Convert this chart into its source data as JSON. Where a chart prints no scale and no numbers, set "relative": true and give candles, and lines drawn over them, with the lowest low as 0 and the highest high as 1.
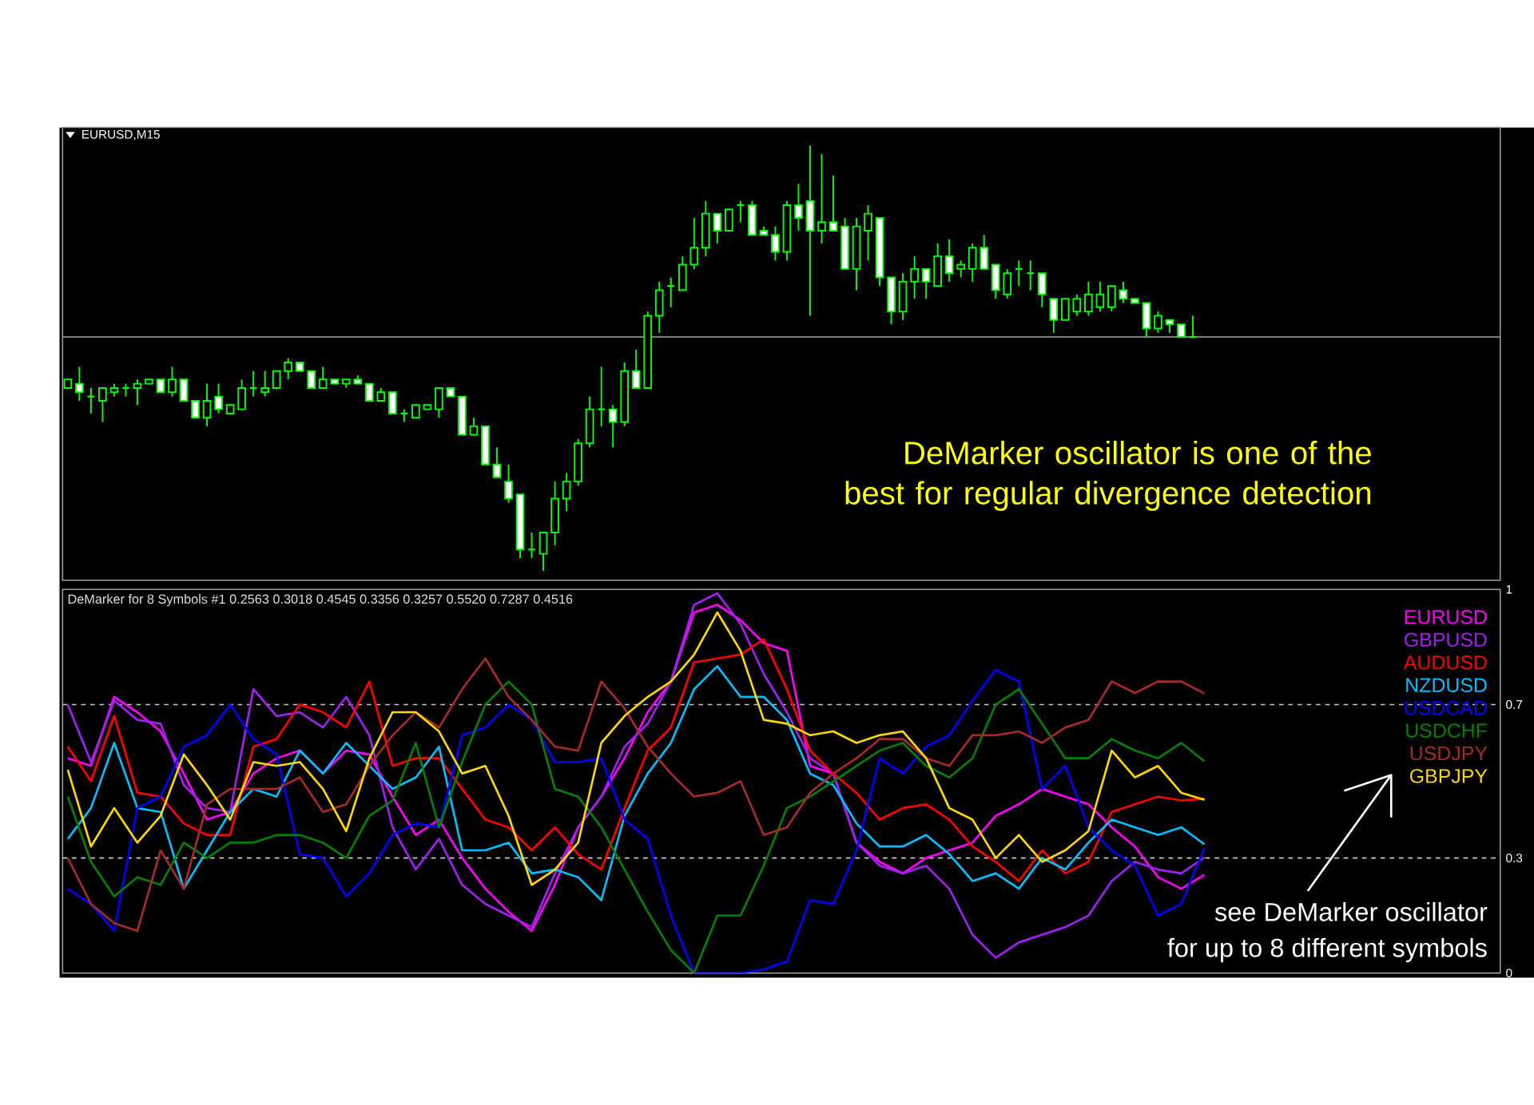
{
  "chart_data": [
    {
      "type": "candlestick",
      "title": "EURUSD,M15",
      "relative": true,
      "color": "#00ff00",
      "categories": [
        null,
        null,
        null,
        null,
        null,
        null,
        null,
        null,
        null,
        null,
        null,
        null,
        null,
        null,
        null,
        null,
        null,
        null,
        null,
        null,
        null,
        null,
        null,
        null,
        null,
        null,
        null,
        null,
        null,
        null,
        null,
        null,
        null,
        null,
        null,
        null,
        null,
        null,
        null,
        null,
        null,
        null,
        null,
        null,
        null,
        null,
        null,
        null,
        null,
        null,
        null,
        null,
        null,
        null,
        null,
        null,
        null,
        null,
        null,
        null,
        null,
        null,
        null,
        null,
        null,
        null,
        null,
        null,
        null,
        null,
        null,
        null,
        null,
        null,
        null,
        null,
        null,
        null,
        null,
        null,
        null,
        null,
        null,
        null,
        null,
        null,
        null,
        null,
        null,
        null,
        null,
        null,
        null,
        null,
        null,
        null,
        null,
        null
      ],
      "ohlc": [
        [
          0.43,
          0.45,
          0.43,
          0.45
        ],
        [
          0.44,
          0.48,
          0.4,
          0.42
        ],
        [
          0.41,
          0.43,
          0.37,
          0.41
        ],
        [
          0.4,
          0.43,
          0.35,
          0.43
        ],
        [
          0.42,
          0.44,
          0.41,
          0.43
        ],
        [
          0.43,
          0.44,
          0.41,
          0.43
        ],
        [
          0.43,
          0.45,
          0.39,
          0.44
        ],
        [
          0.44,
          0.45,
          0.44,
          0.45
        ],
        [
          0.45,
          0.45,
          0.42,
          0.42
        ],
        [
          0.42,
          0.48,
          0.41,
          0.45
        ],
        [
          0.45,
          0.45,
          0.4,
          0.4
        ],
        [
          0.4,
          0.4,
          0.36,
          0.36
        ],
        [
          0.36,
          0.44,
          0.34,
          0.4
        ],
        [
          0.41,
          0.44,
          0.37,
          0.38
        ],
        [
          0.37,
          0.39,
          0.37,
          0.39
        ],
        [
          0.38,
          0.45,
          0.38,
          0.43
        ],
        [
          0.43,
          0.47,
          0.41,
          0.43
        ],
        [
          0.42,
          0.47,
          0.41,
          0.43
        ],
        [
          0.43,
          0.47,
          0.43,
          0.47
        ],
        [
          0.47,
          0.5,
          0.45,
          0.49
        ],
        [
          0.49,
          0.49,
          0.47,
          0.47
        ],
        [
          0.47,
          0.47,
          0.43,
          0.43
        ],
        [
          0.43,
          0.48,
          0.43,
          0.45
        ],
        [
          0.45,
          0.45,
          0.44,
          0.44
        ],
        [
          0.44,
          0.45,
          0.43,
          0.45
        ],
        [
          0.45,
          0.46,
          0.44,
          0.44
        ],
        [
          0.44,
          0.44,
          0.4,
          0.4
        ],
        [
          0.4,
          0.43,
          0.4,
          0.42
        ],
        [
          0.42,
          0.42,
          0.37,
          0.37
        ],
        [
          0.37,
          0.38,
          0.35,
          0.37
        ],
        [
          0.36,
          0.39,
          0.36,
          0.39
        ],
        [
          0.38,
          0.39,
          0.38,
          0.39
        ],
        [
          0.38,
          0.43,
          0.36,
          0.43
        ],
        [
          0.43,
          0.43,
          0.41,
          0.41
        ],
        [
          0.41,
          0.41,
          0.32,
          0.32
        ],
        [
          0.32,
          0.36,
          0.32,
          0.34
        ],
        [
          0.34,
          0.34,
          0.25,
          0.25
        ],
        [
          0.25,
          0.29,
          0.22,
          0.22
        ],
        [
          0.21,
          0.25,
          0.16,
          0.17
        ],
        [
          0.18,
          0.18,
          0.03,
          0.05
        ],
        [
          0.05,
          0.09,
          0.03,
          0.05
        ],
        [
          0.04,
          0.09,
          0,
          0.09
        ],
        [
          0.09,
          0.21,
          0.06,
          0.17
        ],
        [
          0.17,
          0.23,
          0.14,
          0.21
        ],
        [
          0.21,
          0.31,
          0.2,
          0.3
        ],
        [
          0.3,
          0.41,
          0.29,
          0.38
        ],
        [
          0.38,
          0.48,
          0.34,
          0.38
        ],
        [
          0.38,
          0.39,
          0.29,
          0.35
        ],
        [
          0.35,
          0.49,
          0.34,
          0.47
        ],
        [
          0.47,
          0.52,
          0.43,
          0.43
        ],
        [
          0.43,
          0.61,
          0.43,
          0.6
        ],
        [
          0.6,
          0.68,
          0.56,
          0.66
        ],
        [
          0.67,
          0.69,
          0.62,
          0.67
        ],
        [
          0.66,
          0.74,
          0.66,
          0.72
        ],
        [
          0.72,
          0.83,
          0.71,
          0.76
        ],
        [
          0.76,
          0.87,
          0.74,
          0.84
        ],
        [
          0.84,
          0.84,
          0.77,
          0.8
        ],
        [
          0.8,
          0.85,
          0.8,
          0.85
        ],
        [
          0.86,
          0.87,
          0.82,
          0.86
        ],
        [
          0.86,
          0.87,
          0.79,
          0.79
        ],
        [
          0.8,
          0.81,
          0.79,
          0.79
        ],
        [
          0.79,
          0.81,
          0.73,
          0.75
        ],
        [
          0.75,
          0.87,
          0.73,
          0.86
        ],
        [
          0.86,
          0.91,
          0.8,
          0.83
        ],
        [
          0.87,
          1,
          0.6,
          0.8
        ],
        [
          0.8,
          0.98,
          0.77,
          0.82
        ],
        [
          0.82,
          0.93,
          0.8,
          0.8
        ],
        [
          0.81,
          0.83,
          0.71,
          0.71
        ],
        [
          0.71,
          0.83,
          0.66,
          0.81
        ],
        [
          0.8,
          0.86,
          0.73,
          0.84
        ],
        [
          0.83,
          0.83,
          0.67,
          0.69
        ],
        [
          0.69,
          0.69,
          0.58,
          0.61
        ],
        [
          0.61,
          0.7,
          0.59,
          0.68
        ],
        [
          0.68,
          0.74,
          0.64,
          0.71
        ],
        [
          0.71,
          0.71,
          0.64,
          0.68
        ],
        [
          0.67,
          0.77,
          0.67,
          0.74
        ],
        [
          0.74,
          0.78,
          0.68,
          0.7
        ],
        [
          0.71,
          0.73,
          0.69,
          0.72
        ],
        [
          0.71,
          0.77,
          0.68,
          0.76
        ],
        [
          0.76,
          0.79,
          0.71,
          0.71
        ],
        [
          0.72,
          0.72,
          0.64,
          0.66
        ],
        [
          0.65,
          0.71,
          0.64,
          0.7
        ],
        [
          0.71,
          0.73,
          0.67,
          0.71
        ],
        [
          0.7,
          0.73,
          0.66,
          0.7
        ],
        [
          0.7,
          0.7,
          0.62,
          0.65
        ],
        [
          0.64,
          0.64,
          0.56,
          0.59
        ],
        [
          0.59,
          0.64,
          0.59,
          0.64
        ],
        [
          0.61,
          0.65,
          0.6,
          0.64
        ],
        [
          0.61,
          0.68,
          0.6,
          0.65
        ],
        [
          0.62,
          0.68,
          0.61,
          0.65
        ],
        [
          0.62,
          0.67,
          0.61,
          0.67
        ],
        [
          0.66,
          0.68,
          0.63,
          0.64
        ],
        [
          0.64,
          0.64,
          0.63,
          0.63
        ],
        [
          0.63,
          0.63,
          0.55,
          0.57
        ],
        [
          0.57,
          0.61,
          0.56,
          0.6
        ],
        [
          0.59,
          0.59,
          0.56,
          0.58
        ],
        [
          0.58,
          0.58,
          0.55,
          0.55
        ],
        [
          0.55,
          0.6,
          0.55,
          0.55
        ]
      ],
      "ref_lines": [
        {
          "axis": "y",
          "value": 0.55,
          "color": "#a0a8b0"
        }
      ],
      "annotations": [
        "DeMarker oscillator is one of the best for regular divergence detection"
      ]
    },
    {
      "type": "line",
      "title": "DeMarker for 8 Symbols #1 0.2563 0.3018 0.4545 0.3356 0.3257 0.5520 0.7287 0.4516",
      "categories": [
        null,
        null,
        null,
        null,
        null,
        null,
        null,
        null,
        null,
        null,
        null,
        null,
        null,
        null,
        null,
        null,
        null,
        null,
        null,
        null,
        null,
        null,
        null,
        null,
        null,
        null,
        null,
        null,
        null,
        null,
        null,
        null,
        null,
        null,
        null,
        null,
        null,
        null,
        null,
        null,
        null,
        null,
        null,
        null,
        null,
        null,
        null,
        null,
        null,
        null
      ],
      "ylim": [
        0,
        1
      ],
      "yticks": [
        0,
        0.3,
        0.7,
        1
      ],
      "tick_labels": "y",
      "legend": "top right",
      "ref_lines": [
        {
          "axis": "y",
          "value": 0.3,
          "color": "#c8c8c8",
          "line_style": "dashed"
        },
        {
          "axis": "y",
          "value": 0.7,
          "color": "#c8c8c8",
          "line_style": "dashed"
        }
      ],
      "annotations": [
        "see DeMarker oscillator",
        "for up to 8 different symbols"
      ],
      "series": [
        {
          "name": "EURUSD",
          "color": "#ff00ff",
          "values": [
            0.56,
            0.54,
            0.72,
            0.68,
            0.63,
            0.52,
            0.4,
            0.42,
            0.52,
            0.56,
            0.58,
            0.52,
            0.58,
            0.57,
            0.46,
            0.36,
            0.4,
            0.3,
            0.22,
            0.16,
            0.11,
            0.23,
            0.38,
            0.46,
            0.56,
            0.68,
            0.76,
            0.94,
            0.96,
            0.92,
            0.86,
            0.84,
            0.54,
            0.52,
            0.34,
            0.29,
            0.26,
            0.3,
            0.32,
            0.34,
            0.41,
            0.44,
            0.48,
            0.46,
            0.44,
            0.38,
            0.33,
            0.25,
            0.22,
            0.2563
          ]
        },
        {
          "name": "GBPUSD",
          "color": "#a020f0",
          "values": [
            0.7,
            0.55,
            0.71,
            0.66,
            0.65,
            0.49,
            0.43,
            0.42,
            0.74,
            0.67,
            0.68,
            0.64,
            0.72,
            0.62,
            0.38,
            0.27,
            0.35,
            0.23,
            0.18,
            0.15,
            0.12,
            0.26,
            0.38,
            0.46,
            0.59,
            0.65,
            0.76,
            0.96,
            0.99,
            0.91,
            0.78,
            0.68,
            0.56,
            0.52,
            0.34,
            0.28,
            0.26,
            0.28,
            0.22,
            0.1,
            0.04,
            0.08,
            0.1,
            0.12,
            0.15,
            0.24,
            0.29,
            0.27,
            0.26,
            0.3018
          ]
        },
        {
          "name": "AUDUSD",
          "color": "#ff0000",
          "values": [
            0.59,
            0.5,
            0.67,
            0.47,
            0.46,
            0.39,
            0.36,
            0.36,
            0.59,
            0.61,
            0.7,
            0.68,
            0.64,
            0.76,
            0.54,
            0.56,
            0.56,
            0.48,
            0.4,
            0.38,
            0.32,
            0.38,
            0.31,
            0.27,
            0.43,
            0.58,
            0.64,
            0.81,
            0.82,
            0.83,
            0.87,
            0.74,
            0.58,
            0.52,
            0.47,
            0.4,
            0.43,
            0.44,
            0.4,
            0.33,
            0.29,
            0.24,
            0.32,
            0.26,
            0.29,
            0.42,
            0.44,
            0.46,
            0.45,
            0.4545
          ]
        },
        {
          "name": "NZDUSD",
          "color": "#00bfff",
          "values": [
            0.35,
            0.43,
            0.6,
            0.43,
            0.42,
            0.22,
            0.32,
            0.42,
            0.48,
            0.46,
            0.58,
            0.52,
            0.6,
            0.54,
            0.48,
            0.51,
            0.59,
            0.32,
            0.32,
            0.34,
            0.26,
            0.27,
            0.25,
            0.19,
            0.41,
            0.52,
            0.6,
            0.74,
            0.8,
            0.72,
            0.72,
            0.66,
            0.52,
            0.49,
            0.39,
            0.33,
            0.33,
            0.36,
            0.31,
            0.24,
            0.26,
            0.22,
            0.3,
            0.27,
            0.34,
            0.4,
            0.38,
            0.36,
            0.38,
            0.3356
          ]
        },
        {
          "name": "USDCAD",
          "color": "#0000ff",
          "values": [
            0.22,
            0.18,
            0.11,
            0.43,
            0.46,
            0.59,
            0.62,
            0.7,
            0.61,
            0.57,
            0.31,
            0.3,
            0.2,
            0.26,
            0.36,
            0.39,
            0.38,
            0.62,
            0.64,
            0.7,
            0.66,
            0.55,
            0.55,
            0.56,
            0.4,
            0.35,
            0.15,
            0,
            0,
            0,
            0.01,
            0.03,
            0.19,
            0.18,
            0.32,
            0.56,
            0.52,
            0.59,
            0.62,
            0.71,
            0.79,
            0.76,
            0.48,
            0.54,
            0.38,
            0.32,
            0.28,
            0.15,
            0.18,
            0.3257
          ]
        },
        {
          "name": "USDCHF",
          "color": "#008000",
          "values": [
            0.46,
            0.29,
            0.2,
            0.25,
            0.23,
            0.34,
            0.3,
            0.34,
            0.34,
            0.36,
            0.36,
            0.34,
            0.3,
            0.41,
            0.45,
            0.6,
            0.38,
            0.55,
            0.7,
            0.76,
            0.7,
            0.48,
            0.46,
            0.38,
            0.27,
            0.16,
            0.06,
            0,
            0.15,
            0.15,
            0.28,
            0.43,
            0.46,
            0.5,
            0.54,
            0.58,
            0.6,
            0.54,
            0.51,
            0.56,
            0.7,
            0.74,
            0.65,
            0.56,
            0.56,
            0.61,
            0.58,
            0.56,
            0.6,
            0.552
          ]
        },
        {
          "name": "USDJPY",
          "color": "#a52a2a",
          "values": [
            0.3,
            0.18,
            0.13,
            0.11,
            0.32,
            0.22,
            0.44,
            0.48,
            0.48,
            0.48,
            0.51,
            0.42,
            0.44,
            0.54,
            0.62,
            0.68,
            0.64,
            0.74,
            0.82,
            0.72,
            0.66,
            0.59,
            0.58,
            0.76,
            0.69,
            0.59,
            0.52,
            0.46,
            0.47,
            0.5,
            0.36,
            0.38,
            0.47,
            0.52,
            0.56,
            0.61,
            0.61,
            0.56,
            0.54,
            0.62,
            0.62,
            0.63,
            0.6,
            0.64,
            0.66,
            0.76,
            0.73,
            0.76,
            0.76,
            0.7287
          ]
        },
        {
          "name": "GBPJPY",
          "color": "#ffd700",
          "values": [
            0.53,
            0.33,
            0.43,
            0.34,
            0.41,
            0.57,
            0.49,
            0.4,
            0.55,
            0.54,
            0.55,
            0.48,
            0.37,
            0.56,
            0.68,
            0.68,
            0.63,
            0.52,
            0.54,
            0.41,
            0.23,
            0.27,
            0.34,
            0.6,
            0.67,
            0.72,
            0.76,
            0.83,
            0.94,
            0.84,
            0.66,
            0.65,
            0.62,
            0.63,
            0.6,
            0.62,
            0.63,
            0.56,
            0.43,
            0.4,
            0.3,
            0.36,
            0.29,
            0.32,
            0.37,
            0.58,
            0.51,
            0.54,
            0.47,
            0.4516
          ]
        }
      ]
    }
  ]
}
